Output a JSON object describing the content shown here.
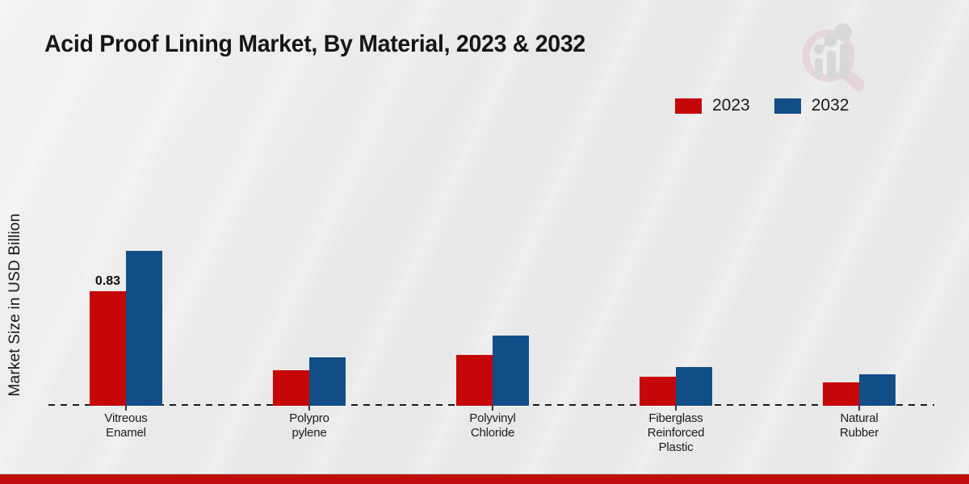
{
  "title": "Acid Proof Lining Market, By Material, 2023 & 2032",
  "watermark": "market-research-magnifier-logo",
  "footer_color": "#c00c0c",
  "chart_data": {
    "type": "bar",
    "title": "Acid Proof Lining Market, By Material, 2023 & 2032",
    "xlabel": "",
    "ylabel": "Market Size in USD Billion",
    "unit": "USD Billion",
    "grid": false,
    "legend_position": "top-right",
    "baseline_style": "dashed",
    "ylim": [
      0,
      1.2
    ],
    "categories": [
      "Vitreous Enamel",
      "Polypropylene",
      "Polyvinyl Chloride",
      "Fiberglass Reinforced Plastic",
      "Natural Rubber"
    ],
    "category_lines": [
      [
        "Vitreous",
        "Enamel"
      ],
      [
        "Polypro",
        "pylene"
      ],
      [
        "Polyvinyl",
        "Chloride"
      ],
      [
        "Fiberglass",
        "Reinforced",
        "Plastic"
      ],
      [
        "Natural",
        "Rubber"
      ]
    ],
    "series": [
      {
        "name": "2023",
        "color": "#c60707",
        "values": [
          0.83,
          0.26,
          0.37,
          0.21,
          0.17
        ],
        "value_labels": [
          "0.83",
          "",
          "",
          "",
          ""
        ]
      },
      {
        "name": "2032",
        "color": "#114e88",
        "values": [
          1.12,
          0.35,
          0.51,
          0.28,
          0.23
        ],
        "value_labels": [
          "",
          "",
          "",
          "",
          ""
        ]
      }
    ]
  }
}
